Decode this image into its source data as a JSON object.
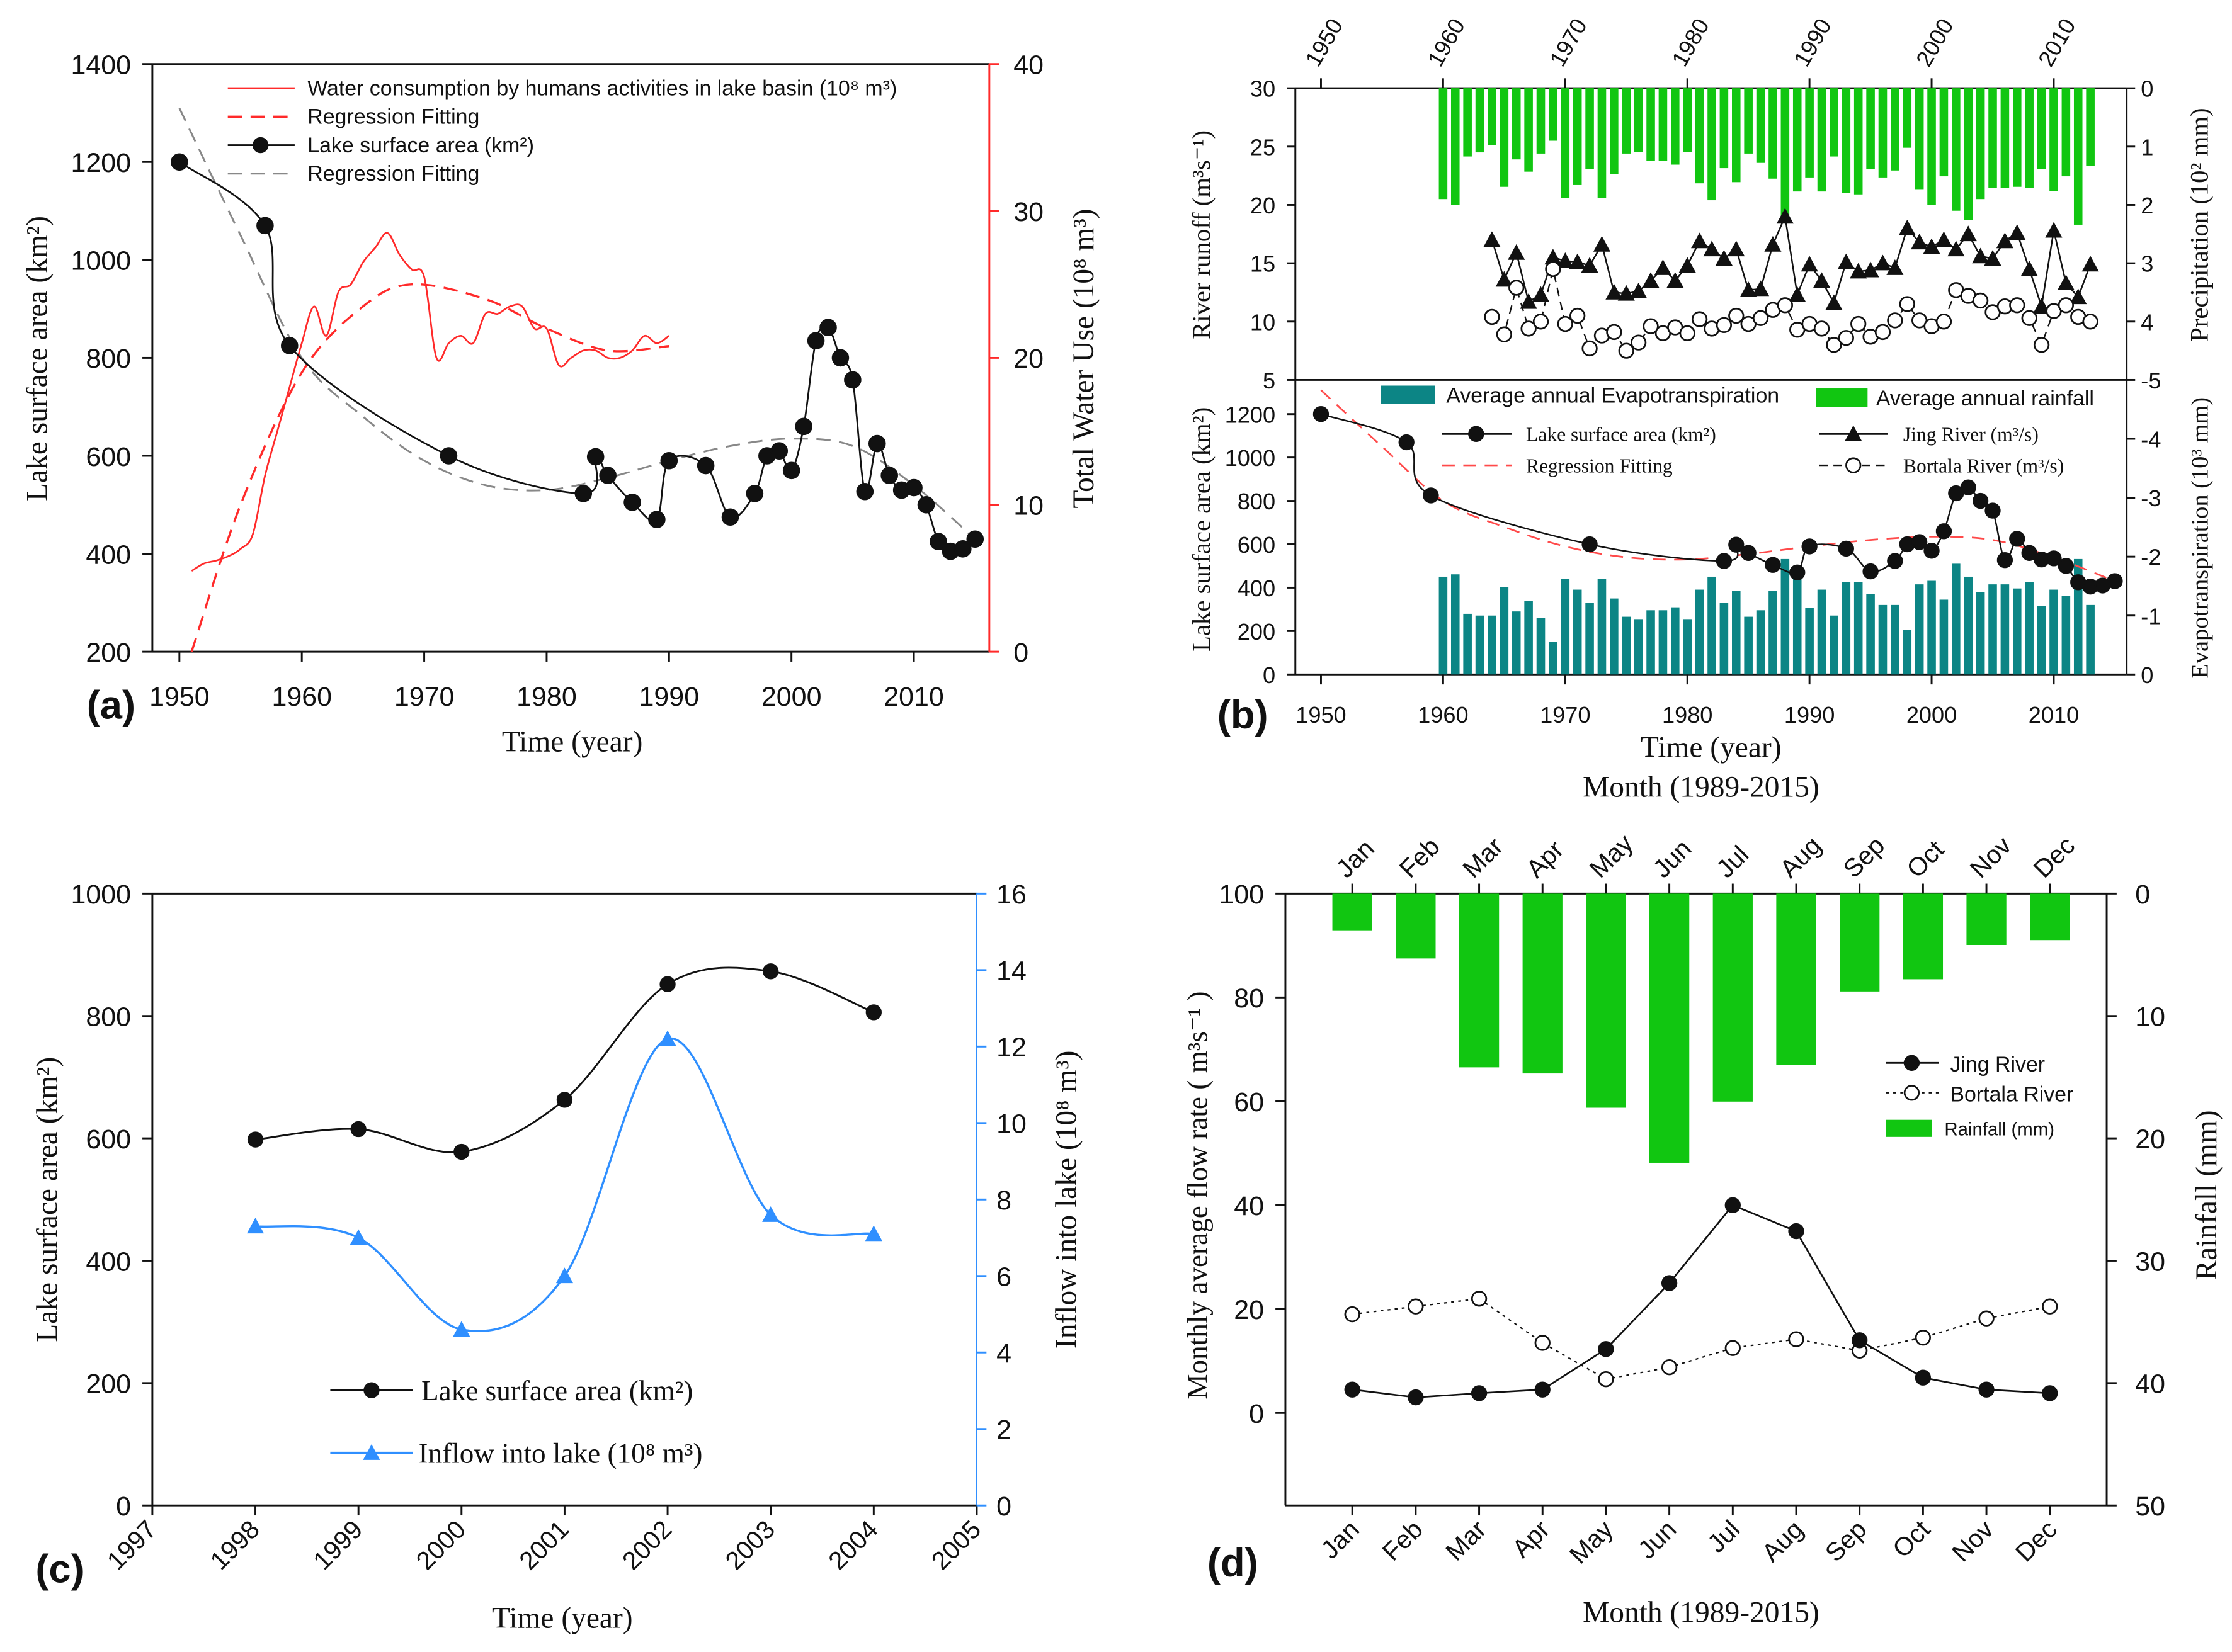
{
  "colors": {
    "black": "#111111",
    "red": "#ff2a2a",
    "gray": "#888888",
    "blue": "#2f8fff",
    "green": "#11c611",
    "teal": "#0c8585"
  },
  "chart_data": [
    {
      "panel_label": "(a)",
      "type": "line",
      "xlabel": "Time (year)",
      "ylabel": "Lake surface area (km²)",
      "y2label": "Total Water Use (10⁸ m³)",
      "xlim": [
        1948,
        2018
      ],
      "ylim": [
        200,
        1400
      ],
      "y2lim": [
        0,
        40
      ],
      "xticks": [
        "1950",
        "1960",
        "1970",
        "1980",
        "1990",
        "2000",
        "2010"
      ],
      "yticks": [
        "200",
        "400",
        "600",
        "800",
        "1000",
        "1200",
        "1400"
      ],
      "y2ticks": [
        "0",
        "10",
        "20",
        "30",
        "40"
      ],
      "legend": [
        "Water consumption by humans activities in lake basin (10⁸ m³)",
        "Regression Fitting",
        "Lake surface area (km²)",
        "Regression Fitting"
      ],
      "lake": {
        "x": [
          1950,
          1957,
          1959,
          1972,
          1983,
          1984,
          1985,
          1987,
          1989,
          1990,
          1993,
          1995,
          1997,
          1998,
          1999,
          2000,
          2001,
          2002,
          2003,
          2004,
          2005,
          2006,
          2007,
          2008,
          2009,
          2010,
          2011,
          2012,
          2013,
          2014,
          2015
        ],
        "y": [
          1200,
          1070,
          825,
          600,
          523,
          598,
          560,
          505,
          470,
          590,
          580,
          475,
          523,
          600,
          610,
          570,
          660,
          835,
          862,
          800,
          755,
          527,
          625,
          560,
          530,
          535,
          500,
          425,
          405,
          410,
          430
        ]
      },
      "lake_fit": {
        "x": [
          1950,
          1955,
          1960,
          1965,
          1970,
          1975,
          1980,
          1985,
          1990,
          1995,
          2000,
          2005,
          2010,
          2015
        ],
        "y": [
          1310,
          1050,
          800,
          680,
          590,
          540,
          530,
          555,
          590,
          620,
          635,
          620,
          540,
          430
        ]
      },
      "water_use": {
        "x": [
          1951,
          1952,
          1953,
          1954,
          1955,
          1956,
          1957,
          1958,
          1959,
          1960,
          1961,
          1962,
          1963,
          1964,
          1965,
          1966,
          1967,
          1968,
          1969,
          1970,
          1971,
          1972,
          1973,
          1974,
          1975,
          1976,
          1977,
          1978,
          1979,
          1980,
          1981,
          1982,
          1983,
          1984,
          1985,
          1986,
          1987,
          1988,
          1989,
          1990
        ],
        "y": [
          5.5,
          6,
          6.2,
          6.5,
          7,
          8,
          12,
          15,
          18,
          21,
          23.5,
          21.5,
          24.5,
          25,
          26.5,
          27.5,
          28.5,
          27,
          26,
          25.5,
          20,
          21,
          21.5,
          21,
          23,
          23,
          23.5,
          23.5,
          22,
          22,
          19.5,
          20,
          20.5,
          20.5,
          20,
          20,
          20.5,
          21.5,
          21,
          21.5
        ]
      },
      "water_fit": {
        "x": [
          1951,
          1955,
          1960,
          1965,
          1969,
          1975,
          1980,
          1985,
          1990
        ],
        "y": [
          0,
          10,
          19,
          23.5,
          25,
          24,
          22,
          20.5,
          20.8
        ]
      }
    },
    {
      "panel_label": "(b)",
      "type": "bar+line",
      "xlabel": "Time (year)",
      "ylabel_top": "River runoff (m³s⁻¹)",
      "ylabel_bottom": "Lake surface area (km²)",
      "y2label_top": "Precipitation (10² mm)",
      "y2label_bottom": "Evapotranspiration (10³ mm)",
      "xticks": [
        "1950",
        "1960",
        "1970",
        "1980",
        "1990",
        "2000",
        "2010"
      ],
      "yticks_top": [
        "5",
        "10",
        "15",
        "20",
        "25",
        "30"
      ],
      "yticks_bottom": [
        "0",
        "200",
        "400",
        "600",
        "800",
        "1000",
        "1200"
      ],
      "y2ticks_top": [
        "0",
        "1",
        "2",
        "3",
        "4",
        "-5"
      ],
      "y2ticks_bottom": [
        "0",
        "-1",
        "-2",
        "-3",
        "-4"
      ],
      "legend": [
        "Average annual Evapotranspiration",
        "Average annual rainfall",
        "Lake surface area (km²)",
        "Regression Fitting",
        "Jing River (m³/s)",
        "Bortala River (m³/s)"
      ],
      "bar_years_start": 1960,
      "rainfall": [
        1.9,
        2.0,
        1.17,
        1.1,
        0.98,
        1.69,
        1.22,
        1.43,
        1.12,
        0.9,
        1.88,
        1.66,
        1.39,
        1.88,
        1.47,
        1.12,
        1.09,
        1.24,
        1.25,
        1.31,
        1.09,
        1.63,
        1.92,
        1.37,
        1.61,
        1.12,
        1.28,
        1.55,
        2.29,
        1.77,
        1.53,
        1.77,
        1.17,
        1.8,
        1.82,
        1.39,
        1.53,
        1.41,
        1.02,
        1.73,
        2.0,
        1.51,
        2.1,
        2.26,
        1.9,
        1.71,
        1.71,
        1.69,
        1.71,
        1.39,
        1.76,
        1.51,
        2.34,
        1.33
      ],
      "evapotranspiration": [
        1.66,
        1.7,
        1.03,
        1.0,
        1.0,
        1.48,
        1.07,
        1.25,
        0.96,
        0.55,
        1.62,
        1.44,
        1.22,
        1.62,
        1.29,
        0.98,
        0.94,
        1.09,
        1.09,
        1.14,
        0.94,
        1.44,
        1.66,
        1.22,
        1.42,
        0.98,
        1.09,
        1.42,
        1.96,
        1.62,
        1.13,
        1.44,
        1.0,
        1.57,
        1.57,
        1.37,
        1.18,
        1.18,
        0.76,
        1.53,
        1.59,
        1.27,
        1.88,
        1.66,
        1.4,
        1.53,
        1.53,
        1.46,
        1.57,
        1.16,
        1.44,
        1.33,
        1.96,
        1.18
      ],
      "river_years_start": 1964,
      "jing": [
        17,
        13.6,
        15.9,
        11.7,
        12.3,
        15.5,
        15.2,
        15.1,
        14.8,
        16.6,
        12.5,
        12.4,
        12.6,
        13.5,
        14.6,
        13.5,
        14.8,
        16.9,
        16.2,
        15.4,
        16.2,
        12.7,
        12.8,
        16.6,
        19,
        12.3,
        14.9,
        13.5,
        11.6,
        15.1,
        14.3,
        14.4,
        15,
        14.6,
        18,
        16.8,
        16.4,
        17,
        16.2,
        17.5,
        15.6,
        15.4,
        16.9,
        17.6,
        14.5,
        11.3,
        17.8,
        13.3,
        12.1,
        14.9
      ],
      "bortala": [
        10.4,
        8.9,
        12.9,
        9.4,
        10,
        14.5,
        9.8,
        10.5,
        7.7,
        8.8,
        9.1,
        7.5,
        8.2,
        9.6,
        9.0,
        9.5,
        9.0,
        10.2,
        9.4,
        9.7,
        10.5,
        9.8,
        10.3,
        11.0,
        11.4,
        9.3,
        9.8,
        9.4,
        8.0,
        8.6,
        9.8,
        8.7,
        9.1,
        10.1,
        11.5,
        10.1,
        9.6,
        10.0,
        12.7,
        12.2,
        11.8,
        10.8,
        11.3,
        11.4,
        10.3,
        8.0,
        10.9,
        11.4,
        10.4,
        10.0
      ]
    },
    {
      "panel_label": "(c)",
      "type": "line",
      "xlabel": "Time (year)",
      "ylabel": "Lake surface area (km²)",
      "y2label": "Inflow into lake (10⁸ m³)",
      "xlim": [
        1997,
        2005
      ],
      "ylim": [
        0,
        1000
      ],
      "y2lim": [
        0,
        16
      ],
      "xticks": [
        "1997",
        "1998",
        "1999",
        "2000",
        "2001",
        "2002",
        "2003",
        "2004",
        "2005"
      ],
      "yticks": [
        "0",
        "200",
        "400",
        "600",
        "800",
        "1000"
      ],
      "y2ticks": [
        "0",
        "2",
        "4",
        "6",
        "8",
        "10",
        "12",
        "14",
        "16"
      ],
      "legend": [
        "Lake surface area (km²)",
        "Inflow into lake (10⁸ m³)"
      ],
      "x": [
        1998,
        1999,
        2000,
        2001,
        2002,
        2003,
        2004
      ],
      "lake": [
        598,
        615,
        578,
        663,
        852,
        873,
        806
      ],
      "inflow": [
        7.3,
        7.0,
        4.6,
        6.0,
        12.2,
        7.6,
        7.1
      ]
    },
    {
      "panel_label": "(d)",
      "type": "bar+line",
      "xlabel": "Month (1989-2015)",
      "xlabel_top": "Month (1989-2015)",
      "ylabel": "Monthly average flow rate ( m³s⁻¹ )",
      "y2label": "Rainfall (mm)",
      "ylim": [
        -18,
        100
      ],
      "y2lim": [
        0,
        50
      ],
      "categories": [
        "Jan",
        "Feb",
        "Mar",
        "Apr",
        "May",
        "Jun",
        "Jul",
        "Aug",
        "Sep",
        "Oct",
        "Nov",
        "Dec"
      ],
      "yticks": [
        "0",
        "20",
        "40",
        "60",
        "80",
        "100"
      ],
      "y2ticks": [
        "0",
        "10",
        "20",
        "30",
        "40",
        "50"
      ],
      "legend": [
        "Jing River",
        "Bortala River",
        "Rainfall (mm)"
      ],
      "rainfall": [
        3,
        5.3,
        14.2,
        14.7,
        17.5,
        22,
        17,
        14,
        8,
        7,
        4.2,
        3.8
      ],
      "jing": [
        4.5,
        3,
        3.8,
        4.5,
        12.3,
        25,
        40,
        35,
        14,
        6.8,
        4.5,
        3.8
      ],
      "bortala": [
        19,
        20.5,
        22,
        13.5,
        6.5,
        8.8,
        12.5,
        14.2,
        12,
        14.5,
        18.2,
        20.5
      ]
    }
  ]
}
